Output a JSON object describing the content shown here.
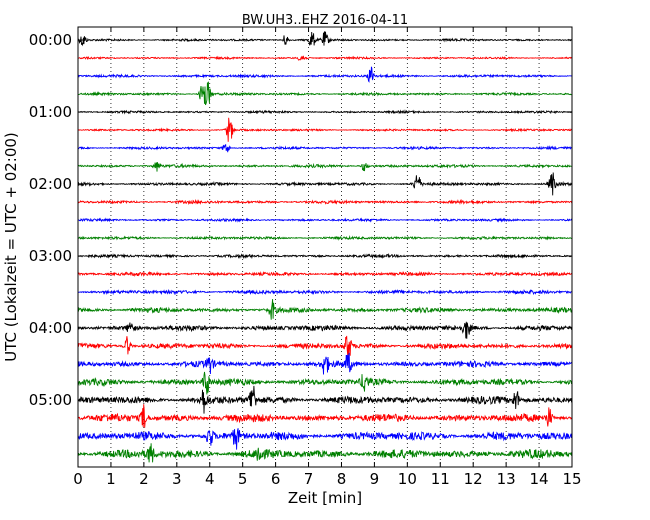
{
  "chart_data": {
    "type": "line",
    "title": "BW.UH3..EHZ 2016-04-11",
    "xlabel": "Zeit  [min]",
    "ylabel": "UTC (Lokalzeit = UTC + 02:00)",
    "xlim": [
      0,
      15
    ],
    "x_ticks": [
      "0",
      "1",
      "2",
      "3",
      "4",
      "5",
      "6",
      "7",
      "8",
      "9",
      "10",
      "11",
      "12",
      "13",
      "14",
      "15"
    ],
    "y_ticks": [
      "00:00",
      "01:00",
      "02:00",
      "03:00",
      "04:00",
      "05:00"
    ],
    "trace_interval_minutes": 15,
    "trace_start": "00:00",
    "trace_count": 24,
    "trace_colors": [
      "#000000",
      "#ff0000",
      "#0000ff",
      "#008000"
    ],
    "grid_x": "dotted",
    "noise_amplitude": [
      1.2,
      1.0,
      1.4,
      1.3,
      1.2,
      1.1,
      1.3,
      1.5,
      1.6,
      1.6,
      1.3,
      1.5,
      1.6,
      1.8,
      2.0,
      2.6,
      3.0,
      3.0,
      3.3,
      3.6,
      4.2,
      4.4,
      4.6,
      4.9
    ],
    "events": [
      {
        "trace": 0,
        "minute": 0.15,
        "amplitude": 7
      },
      {
        "trace": 0,
        "minute": 6.3,
        "amplitude": 6
      },
      {
        "trace": 0,
        "minute": 7.1,
        "amplitude": 9
      },
      {
        "trace": 0,
        "minute": 7.5,
        "amplitude": 8
      },
      {
        "trace": 1,
        "minute": 6.8,
        "amplitude": 5
      },
      {
        "trace": 2,
        "minute": 8.9,
        "amplitude": 10
      },
      {
        "trace": 3,
        "minute": 3.8,
        "amplitude": 15
      },
      {
        "trace": 3,
        "minute": 3.95,
        "amplitude": 12
      },
      {
        "trace": 5,
        "minute": 4.6,
        "amplitude": 14
      },
      {
        "trace": 6,
        "minute": 4.5,
        "amplitude": 6
      },
      {
        "trace": 7,
        "minute": 2.4,
        "amplitude": 5
      },
      {
        "trace": 7,
        "minute": 8.7,
        "amplitude": 5
      },
      {
        "trace": 8,
        "minute": 10.3,
        "amplitude": 12
      },
      {
        "trace": 8,
        "minute": 14.4,
        "amplitude": 12
      },
      {
        "trace": 15,
        "minute": 5.9,
        "amplitude": 10
      },
      {
        "trace": 16,
        "minute": 1.6,
        "amplitude": 7
      },
      {
        "trace": 16,
        "minute": 11.8,
        "amplitude": 10
      },
      {
        "trace": 17,
        "minute": 1.5,
        "amplitude": 10
      },
      {
        "trace": 17,
        "minute": 8.2,
        "amplitude": 14
      },
      {
        "trace": 18,
        "minute": 4.0,
        "amplitude": 8
      },
      {
        "trace": 18,
        "minute": 7.5,
        "amplitude": 12
      },
      {
        "trace": 18,
        "minute": 8.2,
        "amplitude": 10
      },
      {
        "trace": 19,
        "minute": 3.9,
        "amplitude": 14
      },
      {
        "trace": 19,
        "minute": 8.7,
        "amplitude": 10
      },
      {
        "trace": 20,
        "minute": 3.8,
        "amplitude": 12
      },
      {
        "trace": 20,
        "minute": 5.3,
        "amplitude": 18
      },
      {
        "trace": 20,
        "minute": 13.3,
        "amplitude": 10
      },
      {
        "trace": 21,
        "minute": 2.0,
        "amplitude": 12
      },
      {
        "trace": 21,
        "minute": 14.3,
        "amplitude": 10
      },
      {
        "trace": 22,
        "minute": 4.0,
        "amplitude": 10
      },
      {
        "trace": 22,
        "minute": 4.8,
        "amplitude": 12
      },
      {
        "trace": 23,
        "minute": 2.2,
        "amplitude": 10
      },
      {
        "trace": 23,
        "minute": 5.5,
        "amplitude": 8
      }
    ]
  }
}
